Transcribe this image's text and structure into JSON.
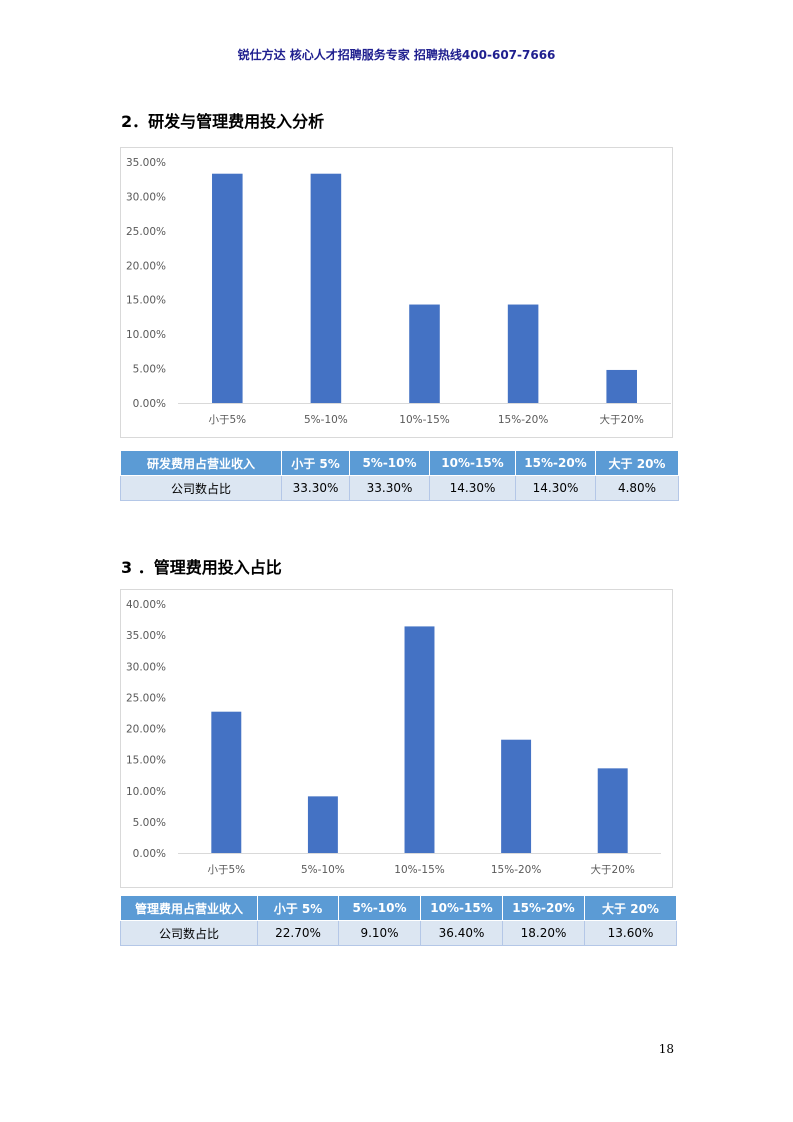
{
  "header": {
    "text": "锐仕方达 核心人才招聘服务专家 招聘热线400-607-7666"
  },
  "section1": {
    "title": "2．研发与管理费用投入分析",
    "table": {
      "headers": [
        "研发费用占营业收入",
        "小于 5%",
        "5%-10%",
        "10%-15%",
        "15%-20%",
        "大于 20%"
      ],
      "row": [
        "公司数占比",
        "33.30%",
        "33.30%",
        "14.30%",
        "14.30%",
        "4.80%"
      ]
    }
  },
  "section2": {
    "title": "3 ．管理费用投入占比",
    "table": {
      "headers": [
        "管理费用占营业收入",
        "小于 5%",
        "5%-10%",
        "10%-15%",
        "15%-20%",
        "大于 20%"
      ],
      "row": [
        "公司数占比",
        "22.70%",
        "9.10%",
        "36.40%",
        "18.20%",
        "13.60%"
      ]
    }
  },
  "page_number": "18",
  "colors": {
    "bar": "#4472c4",
    "table_header": "#5b9bd5",
    "table_row": "#dce6f2",
    "header_text": "#1f1f8f"
  },
  "chart_data": [
    {
      "type": "bar",
      "categories": [
        "小于5%",
        "5%-10%",
        "10%-15%",
        "15%-20%",
        "大于20%"
      ],
      "values": [
        33.3,
        33.3,
        14.3,
        14.3,
        4.8
      ],
      "ylim": [
        0,
        35
      ],
      "yticks": [
        "0.00%",
        "5.00%",
        "10.00%",
        "15.00%",
        "20.00%",
        "25.00%",
        "30.00%",
        "35.00%"
      ],
      "grid": false,
      "title": "",
      "xlabel": "",
      "ylabel": ""
    },
    {
      "type": "bar",
      "categories": [
        "小于5%",
        "5%-10%",
        "10%-15%",
        "15%-20%",
        "大于20%"
      ],
      "values": [
        22.7,
        9.1,
        36.4,
        18.2,
        13.6
      ],
      "ylim": [
        0,
        40
      ],
      "yticks": [
        "0.00%",
        "5.00%",
        "10.00%",
        "15.00%",
        "20.00%",
        "25.00%",
        "30.00%",
        "35.00%",
        "40.00%"
      ],
      "grid": false,
      "title": "",
      "xlabel": "",
      "ylabel": ""
    }
  ]
}
